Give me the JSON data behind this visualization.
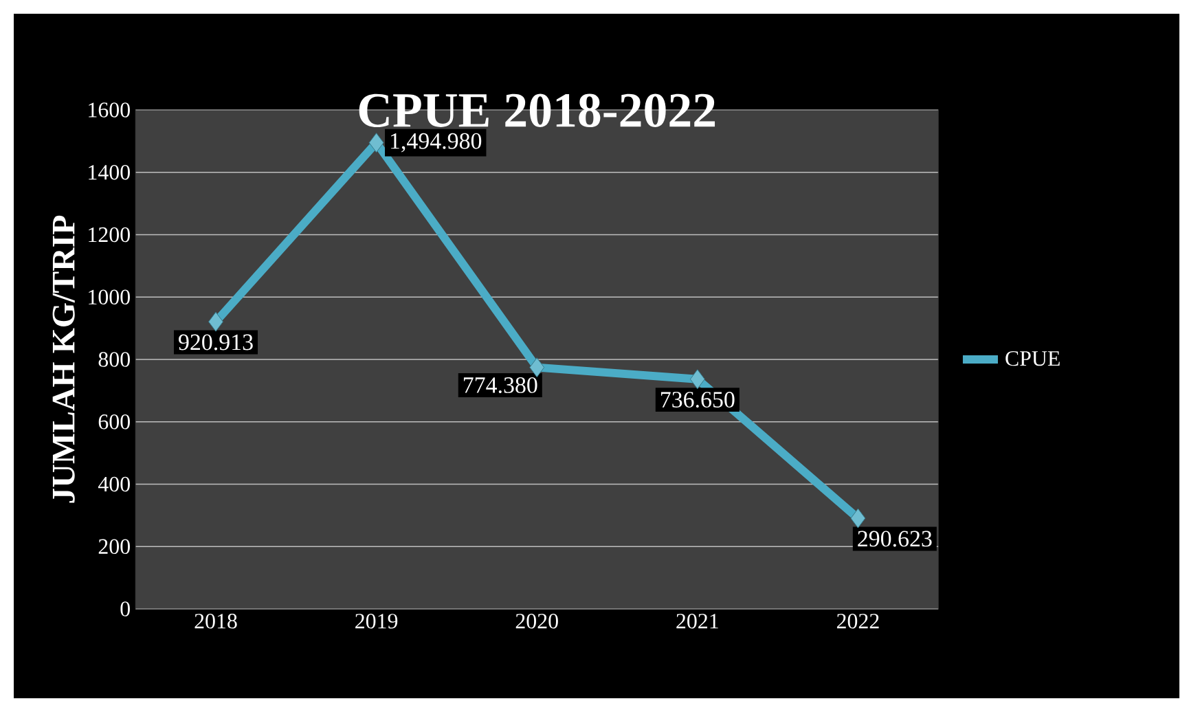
{
  "chart_data": {
    "type": "line",
    "title": "CPUE 2018-2022",
    "ylabel": "JUMLAH  KG/TRIP",
    "categories": [
      "2018",
      "2019",
      "2020",
      "2021",
      "2022"
    ],
    "series": [
      {
        "name": "CPUE",
        "color": "#4bacc6",
        "values": [
          920.913,
          1494.98,
          774.38,
          736.65,
          290.623
        ],
        "value_labels": [
          "920.913",
          "1,494.980",
          "774.380",
          "736.650",
          "290.623"
        ]
      }
    ],
    "ylim": [
      0,
      1600
    ],
    "yticks": [
      0,
      200,
      400,
      600,
      800,
      1000,
      1200,
      1400,
      1600
    ],
    "grid": "y",
    "legend": "right",
    "marker": "diamond",
    "line_style": "solid"
  }
}
